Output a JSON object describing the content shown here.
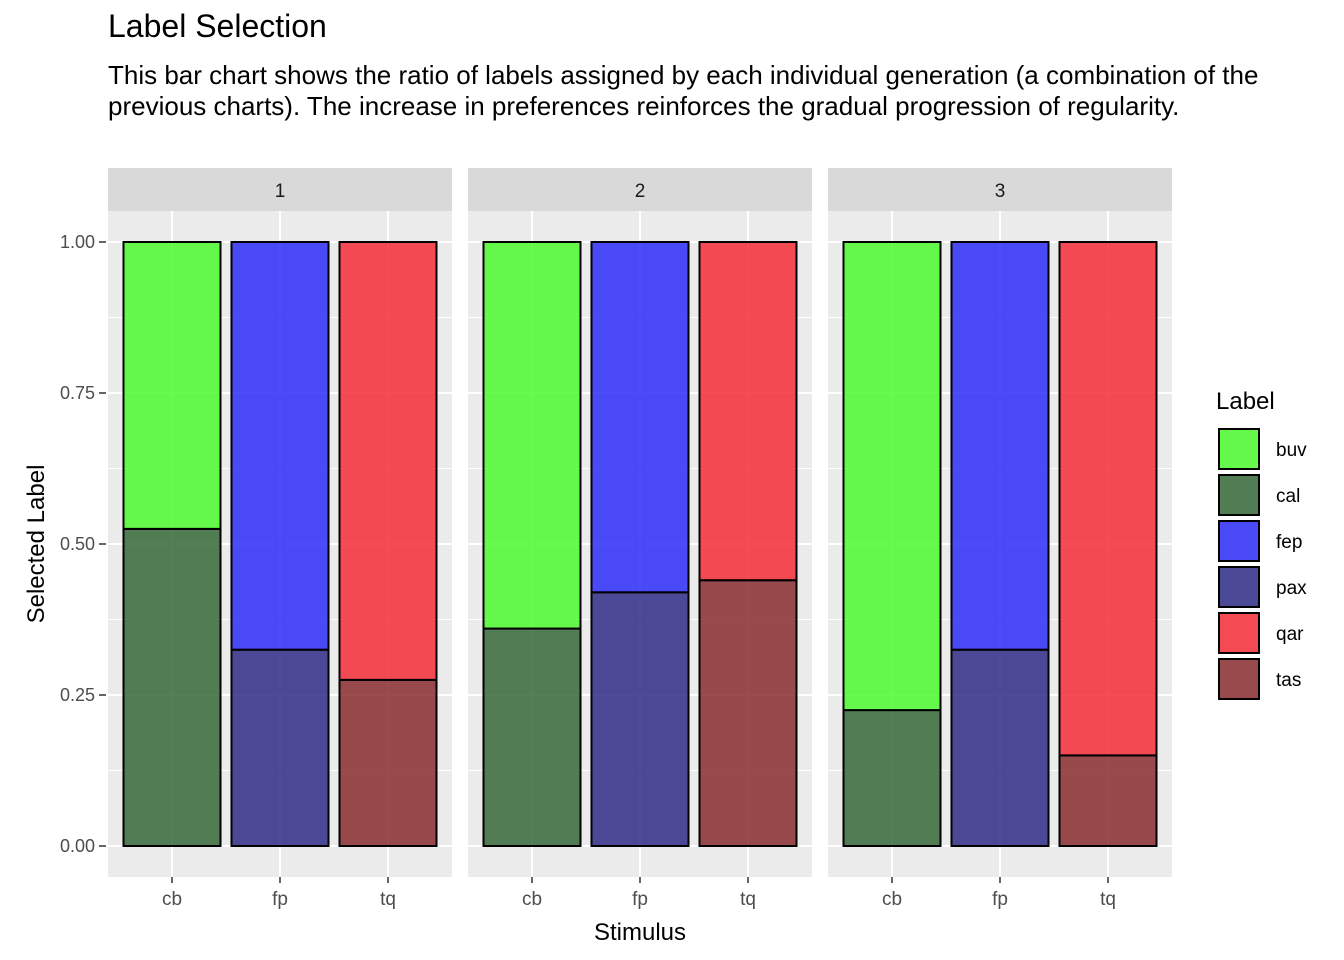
{
  "chart_data": {
    "type": "bar",
    "stacked": true,
    "title": "Label Selection",
    "subtitle": "This bar chart shows the ratio of labels assigned by each individual generation (a combination of the previous charts). The increase in preferences reinforces the gradual progression of regularity.",
    "xlabel": "Stimulus",
    "ylabel": "Selected Label",
    "ylim": [
      0,
      1
    ],
    "yticks": [
      "0.00",
      "0.25",
      "0.50",
      "0.75",
      "1.00"
    ],
    "categories": [
      "cb",
      "fp",
      "tq"
    ],
    "facets": [
      "1",
      "2",
      "3"
    ],
    "legend": {
      "title": "Label",
      "position": "right",
      "items": [
        {
          "name": "buv",
          "color": "#4cfa2f"
        },
        {
          "name": "cal",
          "color": "#36693a"
        },
        {
          "name": "fep",
          "color": "#2d2dfa"
        },
        {
          "name": "pax",
          "color": "#2f2d86"
        },
        {
          "name": "qar",
          "color": "#f52d38"
        },
        {
          "name": "tas",
          "color": "#8a2d2f"
        }
      ]
    },
    "panels": [
      {
        "facet": "1",
        "bars": [
          {
            "category": "cb",
            "segments": [
              {
                "label": "cal",
                "value": 0.525
              },
              {
                "label": "buv",
                "value": 0.475
              }
            ]
          },
          {
            "category": "fp",
            "segments": [
              {
                "label": "pax",
                "value": 0.325
              },
              {
                "label": "fep",
                "value": 0.675
              }
            ]
          },
          {
            "category": "tq",
            "segments": [
              {
                "label": "tas",
                "value": 0.275
              },
              {
                "label": "qar",
                "value": 0.725
              }
            ]
          }
        ]
      },
      {
        "facet": "2",
        "bars": [
          {
            "category": "cb",
            "segments": [
              {
                "label": "cal",
                "value": 0.36
              },
              {
                "label": "buv",
                "value": 0.64
              }
            ]
          },
          {
            "category": "fp",
            "segments": [
              {
                "label": "pax",
                "value": 0.42
              },
              {
                "label": "fep",
                "value": 0.58
              }
            ]
          },
          {
            "category": "tq",
            "segments": [
              {
                "label": "tas",
                "value": 0.44
              },
              {
                "label": "qar",
                "value": 0.56
              }
            ]
          }
        ]
      },
      {
        "facet": "3",
        "bars": [
          {
            "category": "cb",
            "segments": [
              {
                "label": "cal",
                "value": 0.225
              },
              {
                "label": "buv",
                "value": 0.775
              }
            ]
          },
          {
            "category": "fp",
            "segments": [
              {
                "label": "pax",
                "value": 0.325
              },
              {
                "label": "fep",
                "value": 0.675
              }
            ]
          },
          {
            "category": "tq",
            "segments": [
              {
                "label": "tas",
                "value": 0.15
              },
              {
                "label": "qar",
                "value": 0.85
              }
            ]
          }
        ]
      }
    ]
  }
}
